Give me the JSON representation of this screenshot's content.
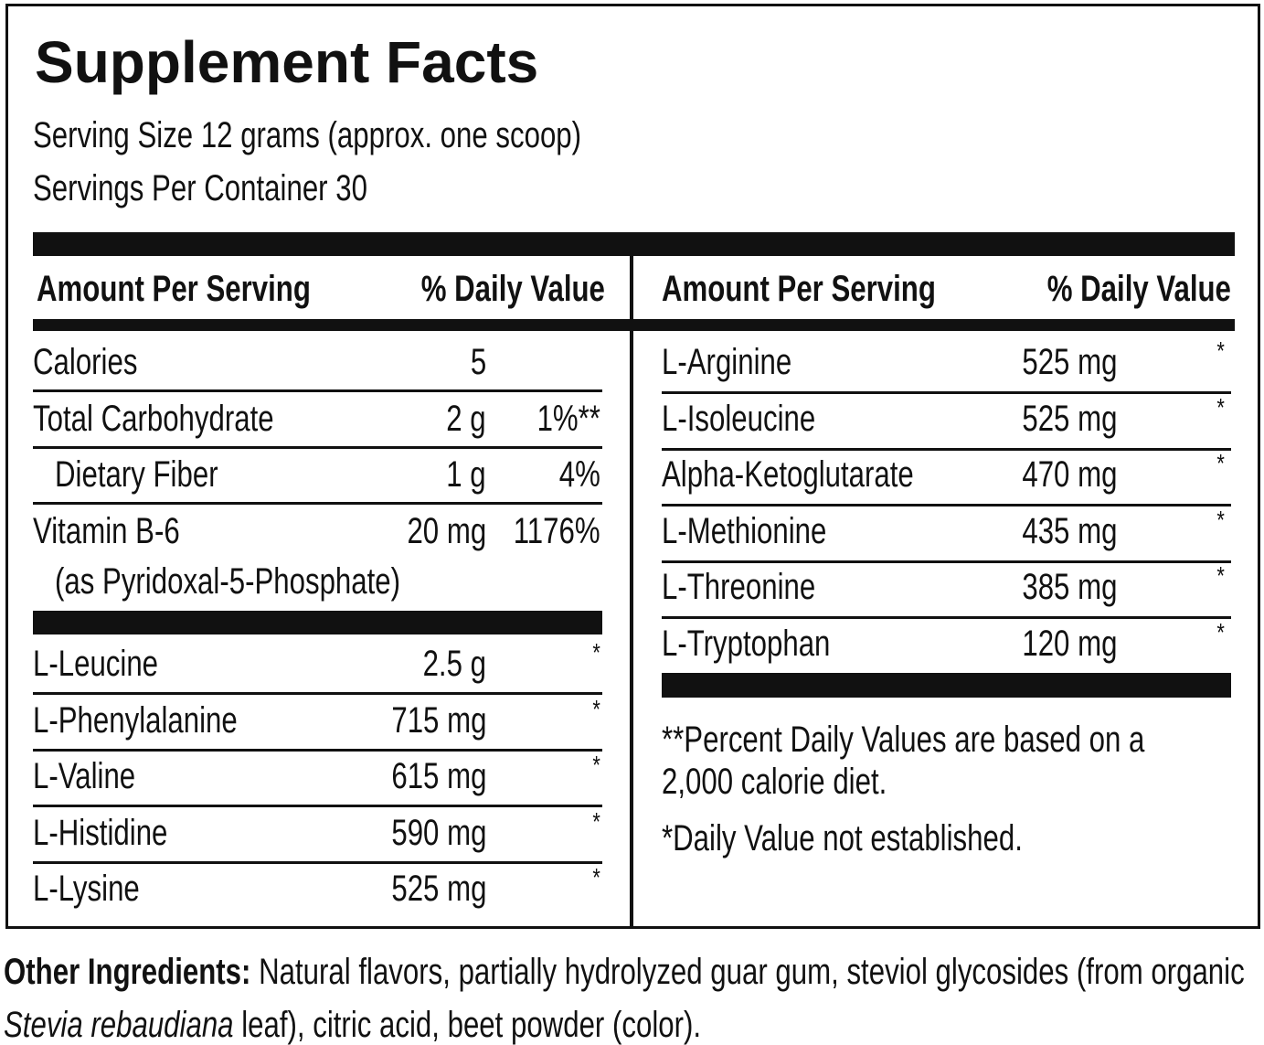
{
  "title": "Supplement Facts",
  "serving_size": "Serving Size 12 grams (approx. one scoop)",
  "servings_per_container": "Servings Per Container 30",
  "left_table": {
    "header": {
      "amount": "Amount Per Serving",
      "daily_value": "% Daily Value"
    },
    "groups": [
      [
        {
          "name": "Calories",
          "amount": "5"
        },
        {
          "name": "Total Carbohydrate",
          "amount": "2 g",
          "daily_value": "1%**"
        },
        {
          "name": "Dietary Fiber",
          "amount": "1 g",
          "daily_value": "4%",
          "indent": true
        },
        {
          "name": "Vitamin B-6",
          "amount": "20 mg",
          "daily_value": "1176%",
          "note": "(as Pyridoxal-5-Phosphate)"
        }
      ],
      [
        {
          "name": "L-Leucine",
          "amount": "2.5 g",
          "daily_value": "*"
        },
        {
          "name": "L-Phenylalanine",
          "amount": "715 mg",
          "daily_value": "*"
        },
        {
          "name": "L-Valine",
          "amount": "615 mg",
          "daily_value": "*"
        },
        {
          "name": "L-Histidine",
          "amount": "590 mg",
          "daily_value": "*"
        },
        {
          "name": "L-Lysine",
          "amount": "525 mg",
          "daily_value": "*"
        }
      ]
    ]
  },
  "right_table": {
    "header": {
      "amount": "Amount Per Serving",
      "daily_value": "% Daily Value"
    },
    "rows": [
      {
        "name": "L-Arginine",
        "amount": "525 mg",
        "daily_value": "*"
      },
      {
        "name": "L-Isoleucine",
        "amount": "525 mg",
        "daily_value": "*"
      },
      {
        "name": "Alpha-Ketoglutarate",
        "amount": "470 mg",
        "daily_value": "*"
      },
      {
        "name": "L-Methionine",
        "amount": "435 mg",
        "daily_value": "*"
      },
      {
        "name": "L-Threonine",
        "amount": "385 mg",
        "daily_value": "*"
      },
      {
        "name": "L-Tryptophan",
        "amount": "120 mg",
        "daily_value": "*"
      }
    ],
    "footnotes": [
      "**Percent Daily Values are based on a 2,000 calorie diet.",
      "*Daily Value not established."
    ]
  },
  "other_ingredients": {
    "label": "Other Ingredients:",
    "text_before": " Natural flavors, partially hydrolyzed guar gum, steviol glycosides (from organic ",
    "italic": "Stevia rebaudiana",
    "text_after": " leaf), citric acid, beet powder (color)."
  }
}
